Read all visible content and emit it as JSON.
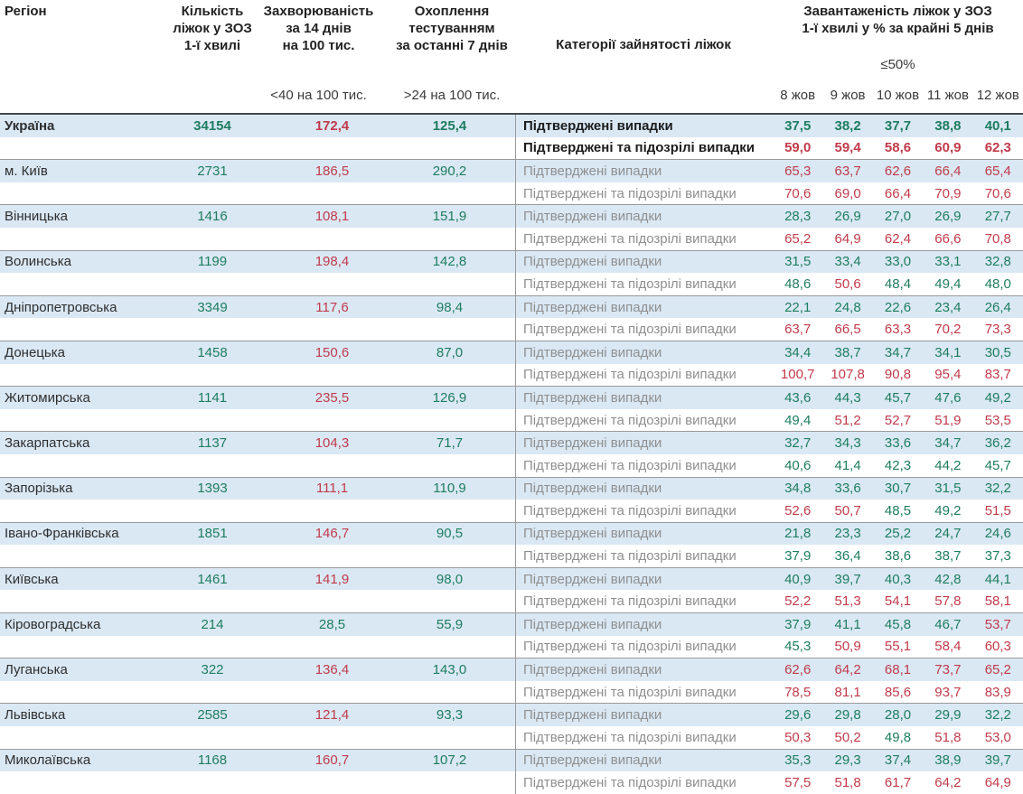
{
  "colors": {
    "green": "#1e7d5f",
    "red": "#c13b4b",
    "row_blue": "#dae8f4",
    "separator": "#9a9a9a",
    "header_line": "#44484c"
  },
  "header": {
    "region": "Регіон",
    "beds": "Кількість\nліжок у ЗОЗ\n1-ї хвилі",
    "morbidity": "Захворюваність\nза 14 днів\nна 100 тис.",
    "testing": "Охоплення\nтестуванням\nза останні 7 днів",
    "categories": "Категорії зайнятості ліжок",
    "occupancy": "Завантаженість ліжок у ЗОЗ\n1-ї хвилі у % за крайні 5 днів",
    "sub_morbidity": "<40 на 100 тис.",
    "sub_testing": ">24 на 100 тис.",
    "sub_occupancy": "≤50%",
    "dates": [
      "8 жов",
      "9 жов",
      "10 жов",
      "11 жов",
      "12 жов"
    ]
  },
  "row_labels": {
    "confirmed": "Підтверджені випадки",
    "suspected": "Підтверджені та підозрілі випадки"
  },
  "thresholds": {
    "morbidity_green_below": 40,
    "testing_green_above": 24,
    "occupancy_green_max": 50
  },
  "regions": [
    {
      "name": "Україна",
      "bold": true,
      "beds": "34154",
      "morbidity": "172,4",
      "testing": "125,4",
      "confirmed": [
        "37,5",
        "38,2",
        "37,7",
        "38,8",
        "40,1"
      ],
      "suspected": [
        "59,0",
        "59,4",
        "58,6",
        "60,9",
        "62,3"
      ]
    },
    {
      "name": "м. Київ",
      "bold": false,
      "beds": "2731",
      "morbidity": "186,5",
      "testing": "290,2",
      "confirmed": [
        "65,3",
        "63,7",
        "62,6",
        "66,4",
        "65,4"
      ],
      "suspected": [
        "70,6",
        "69,0",
        "66,4",
        "70,9",
        "70,6"
      ]
    },
    {
      "name": "Вінницька",
      "bold": false,
      "beds": "1416",
      "morbidity": "108,1",
      "testing": "151,9",
      "confirmed": [
        "28,3",
        "26,9",
        "27,0",
        "26,9",
        "27,7"
      ],
      "suspected": [
        "65,2",
        "64,9",
        "62,4",
        "66,6",
        "70,8"
      ]
    },
    {
      "name": "Волинська",
      "bold": false,
      "beds": "1199",
      "morbidity": "198,4",
      "testing": "142,8",
      "confirmed": [
        "31,5",
        "33,4",
        "33,0",
        "33,1",
        "32,8"
      ],
      "suspected": [
        "48,6",
        "50,6",
        "48,4",
        "49,4",
        "48,0"
      ]
    },
    {
      "name": "Дніпропетровська",
      "bold": false,
      "beds": "3349",
      "morbidity": "117,6",
      "testing": "98,4",
      "confirmed": [
        "22,1",
        "24,8",
        "22,6",
        "23,4",
        "26,4"
      ],
      "suspected": [
        "63,7",
        "66,5",
        "63,3",
        "70,2",
        "73,3"
      ]
    },
    {
      "name": "Донецька",
      "bold": false,
      "beds": "1458",
      "morbidity": "150,6",
      "testing": "87,0",
      "confirmed": [
        "34,4",
        "38,7",
        "34,7",
        "34,1",
        "30,5"
      ],
      "suspected": [
        "100,7",
        "107,8",
        "90,8",
        "95,4",
        "83,7"
      ]
    },
    {
      "name": "Житомирська",
      "bold": false,
      "beds": "1141",
      "morbidity": "235,5",
      "testing": "126,9",
      "confirmed": [
        "43,6",
        "44,3",
        "45,7",
        "47,6",
        "49,2"
      ],
      "suspected": [
        "49,4",
        "51,2",
        "52,7",
        "51,9",
        "53,5"
      ]
    },
    {
      "name": "Закарпатська",
      "bold": false,
      "beds": "1137",
      "morbidity": "104,3",
      "testing": "71,7",
      "confirmed": [
        "32,7",
        "34,3",
        "33,6",
        "34,7",
        "36,2"
      ],
      "suspected": [
        "40,6",
        "41,4",
        "42,3",
        "44,2",
        "45,7"
      ]
    },
    {
      "name": "Запорізька",
      "bold": false,
      "beds": "1393",
      "morbidity": "111,1",
      "testing": "110,9",
      "confirmed": [
        "34,8",
        "33,6",
        "30,7",
        "31,5",
        "32,2"
      ],
      "suspected": [
        "52,6",
        "50,7",
        "48,5",
        "49,2",
        "51,5"
      ]
    },
    {
      "name": "Івано-Франківська",
      "bold": false,
      "beds": "1851",
      "morbidity": "146,7",
      "testing": "90,5",
      "confirmed": [
        "21,8",
        "23,3",
        "25,2",
        "24,7",
        "24,6"
      ],
      "suspected": [
        "37,9",
        "36,4",
        "38,6",
        "38,7",
        "37,3"
      ]
    },
    {
      "name": "Київська",
      "bold": false,
      "beds": "1461",
      "morbidity": "141,9",
      "testing": "98,0",
      "confirmed": [
        "40,9",
        "39,7",
        "40,3",
        "42,8",
        "44,1"
      ],
      "suspected": [
        "52,2",
        "51,3",
        "54,1",
        "57,8",
        "58,1"
      ]
    },
    {
      "name": "Кіровоградська",
      "bold": false,
      "beds": "214",
      "morbidity": "28,5",
      "testing": "55,9",
      "confirmed": [
        "37,9",
        "41,1",
        "45,8",
        "46,7",
        "53,7"
      ],
      "suspected": [
        "45,3",
        "50,9",
        "55,1",
        "58,4",
        "60,3"
      ]
    },
    {
      "name": "Луганська",
      "bold": false,
      "beds": "322",
      "morbidity": "136,4",
      "testing": "143,0",
      "confirmed": [
        "62,6",
        "64,2",
        "68,1",
        "73,7",
        "65,2"
      ],
      "suspected": [
        "78,5",
        "81,1",
        "85,6",
        "93,7",
        "83,9"
      ]
    },
    {
      "name": "Львівська",
      "bold": false,
      "beds": "2585",
      "morbidity": "121,4",
      "testing": "93,3",
      "confirmed": [
        "29,6",
        "29,8",
        "28,0",
        "29,9",
        "32,2"
      ],
      "suspected": [
        "50,3",
        "50,2",
        "49,8",
        "51,8",
        "53,0"
      ]
    },
    {
      "name": "Миколаївська",
      "bold": false,
      "beds": "1168",
      "morbidity": "160,7",
      "testing": "107,2",
      "confirmed": [
        "35,3",
        "29,3",
        "37,4",
        "38,9",
        "39,7"
      ],
      "suspected": [
        "57,5",
        "51,8",
        "61,7",
        "64,2",
        "64,9"
      ]
    }
  ]
}
